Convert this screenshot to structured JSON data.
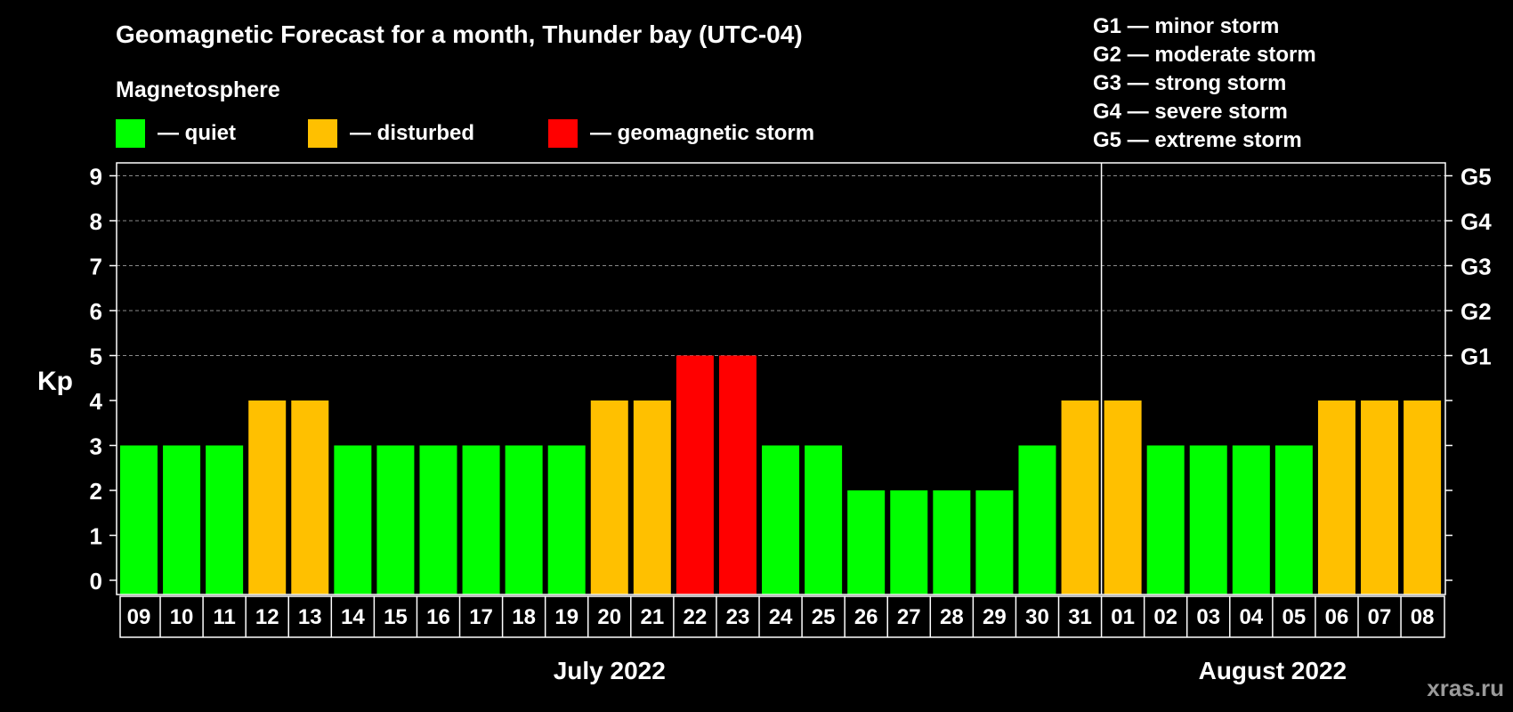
{
  "chart_data": {
    "type": "bar",
    "title": "Geomagnetic Forecast for a month, Thunder bay (UTC-04)",
    "legend": {
      "heading": "Magnetosphere",
      "items": [
        {
          "key": "quiet",
          "label": "— quiet",
          "color": "#00ff00"
        },
        {
          "key": "disturbed",
          "label": "— disturbed",
          "color": "#ffc000"
        },
        {
          "key": "storm",
          "label": "— geomagnetic storm",
          "color": "#ff0000"
        }
      ]
    },
    "storm_scale": [
      "G1 — minor storm",
      "G2 — moderate storm",
      "G3 — strong storm",
      "G4 — severe storm",
      "G5 — extreme storm"
    ],
    "ylabel": "Kp",
    "ylim": [
      0,
      9
    ],
    "yticks": [
      "0",
      "1",
      "2",
      "3",
      "4",
      "5",
      "6",
      "7",
      "8",
      "9"
    ],
    "right_ticks": [
      {
        "kp": 5,
        "label": "G1"
      },
      {
        "kp": 6,
        "label": "G2"
      },
      {
        "kp": 7,
        "label": "G3"
      },
      {
        "kp": 8,
        "label": "G4"
      },
      {
        "kp": 9,
        "label": "G5"
      }
    ],
    "categories": [
      "09",
      "10",
      "11",
      "12",
      "13",
      "14",
      "15",
      "16",
      "17",
      "18",
      "19",
      "20",
      "21",
      "22",
      "23",
      "24",
      "25",
      "26",
      "27",
      "28",
      "29",
      "30",
      "31",
      "01",
      "02",
      "03",
      "04",
      "05",
      "06",
      "07",
      "08"
    ],
    "values": [
      3,
      3,
      3,
      4,
      4,
      3,
      3,
      3,
      3,
      3,
      3,
      4,
      4,
      5,
      5,
      3,
      3,
      2,
      2,
      2,
      2,
      3,
      4,
      4,
      3,
      3,
      3,
      3,
      4,
      4,
      4
    ],
    "levels": [
      "quiet",
      "quiet",
      "quiet",
      "disturbed",
      "disturbed",
      "quiet",
      "quiet",
      "quiet",
      "quiet",
      "quiet",
      "quiet",
      "disturbed",
      "disturbed",
      "storm",
      "storm",
      "quiet",
      "quiet",
      "quiet",
      "quiet",
      "quiet",
      "quiet",
      "quiet",
      "disturbed",
      "disturbed",
      "quiet",
      "quiet",
      "quiet",
      "quiet",
      "disturbed",
      "disturbed",
      "disturbed"
    ],
    "months": [
      {
        "label": "July 2022",
        "from": 0,
        "to": 22
      },
      {
        "label": "August 2022",
        "from": 23,
        "to": 30
      }
    ],
    "grid": true
  },
  "watermark": "xras.ru"
}
